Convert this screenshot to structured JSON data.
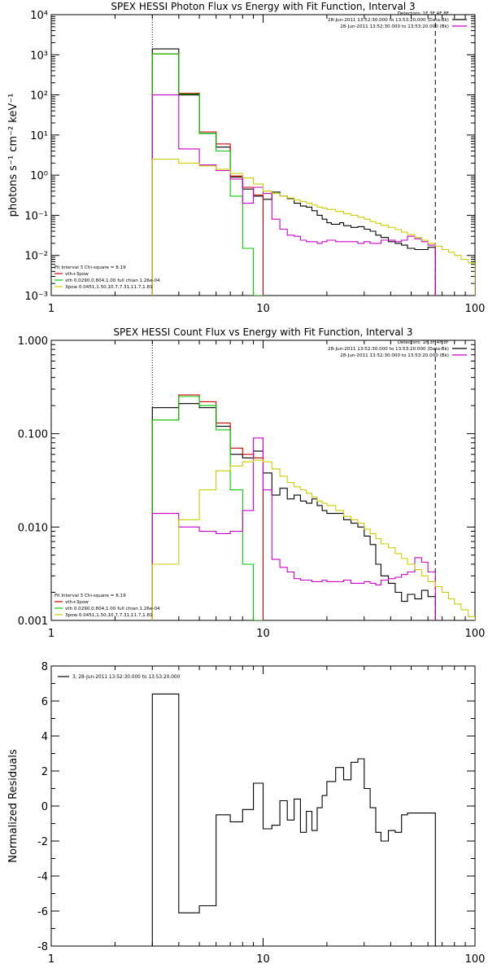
{
  "chart_data": [
    {
      "type": "line",
      "title": "SPEX HESSI Photon Flux vs Energy with Fit Function, Interval 3",
      "ylabel": "photons s⁻¹ cm⁻² keV⁻¹",
      "xlabel": "",
      "xscale": "log",
      "yscale": "log",
      "xlim": [
        1,
        100
      ],
      "ylim": [
        0.001,
        10000
      ],
      "x_ticks": [
        "1",
        "10",
        "100"
      ],
      "y_ticks": [
        "10⁻³",
        "10⁻²",
        "10⁻¹",
        "10⁰",
        "10¹",
        "10²",
        "10³",
        "10⁴"
      ],
      "legend_header": [
        "Detectors: 1F 3F 4F 8F",
        "28-Jun-2011 13:52:30.000 to 13:53:20.000 (Data-Bk)",
        "28-Jun-2011 13:52:30.000 to 13:53:20.000 (Bk)"
      ],
      "legend_header_colors": [
        "",
        "#000000",
        "#cc00cc"
      ],
      "fit_text": [
        "Fit Interval 3   Chi-square = 8.19",
        "vth+3pow",
        "vth 0.0290,0.804,1.00  full chian 1.26e-04",
        "3pow 0.0451,1.50,10.7,7.31,11.7,1.81"
      ],
      "fit_text_colors": [
        "#000000",
        "#cc0000",
        "#00cc00",
        "#cccc00"
      ],
      "vlines": [
        {
          "x": 3,
          "style": "dotted"
        },
        {
          "x": 65,
          "style": "dashed"
        }
      ],
      "series": [
        {
          "color": "#000000",
          "edges": [
            3,
            4,
            5,
            6,
            7,
            8,
            9,
            10,
            11,
            12,
            13,
            14,
            15,
            16,
            17,
            18,
            19,
            20,
            21,
            22,
            23,
            24,
            25,
            26,
            28,
            30,
            32,
            34,
            36,
            39,
            42,
            45,
            48,
            52,
            56,
            60,
            65
          ],
          "values": [
            1400,
            100,
            11,
            5,
            0.9,
            0.45,
            0.3,
            0.25,
            0.38,
            0.3,
            0.26,
            0.2,
            0.17,
            0.16,
            0.13,
            0.1,
            0.08,
            0.065,
            0.06,
            0.06,
            0.065,
            0.055,
            0.055,
            0.05,
            0.052,
            0.045,
            0.04,
            0.032,
            0.028,
            0.022,
            0.02,
            0.018,
            0.015,
            0.014,
            0.014,
            0.016
          ]
        },
        {
          "color": "#cc0000",
          "edges": [
            3,
            4,
            5,
            6,
            7,
            8,
            9,
            10
          ],
          "values": [
            1050,
            110,
            12,
            6,
            0.95,
            0.5,
            0.32
          ]
        },
        {
          "color": "#00cc00",
          "edges": [
            3,
            4,
            5,
            6,
            7,
            8,
            9,
            10
          ],
          "values": [
            1050,
            105,
            11,
            4,
            0.3,
            0.015,
            0.001
          ]
        },
        {
          "color": "#cc00cc",
          "edges": [
            3,
            4,
            5,
            6,
            7,
            8,
            9,
            10,
            11,
            12,
            13,
            14,
            15,
            16,
            17,
            18,
            19,
            20,
            22,
            24,
            26,
            28,
            30,
            32,
            34,
            36,
            39,
            42,
            45,
            48,
            52,
            56,
            60,
            65
          ],
          "values": [
            100,
            4.5,
            1.8,
            1.3,
            0.8,
            0.2,
            0.5,
            0.35,
            0.08,
            0.045,
            0.032,
            0.03,
            0.024,
            0.022,
            0.022,
            0.02,
            0.022,
            0.024,
            0.022,
            0.022,
            0.022,
            0.02,
            0.022,
            0.02,
            0.02,
            0.024,
            0.024,
            0.022,
            0.024,
            0.03,
            0.026,
            0.022,
            0.018
          ]
        },
        {
          "color": "#cccc00",
          "edges": [
            3,
            4,
            5,
            6,
            7,
            8,
            9,
            10,
            11,
            12,
            13,
            14,
            15,
            16,
            17,
            18,
            19,
            20,
            22,
            24,
            26,
            28,
            30,
            32,
            34,
            36,
            39,
            42,
            45,
            48,
            52,
            56,
            60,
            65,
            70,
            75,
            80,
            86,
            93,
            100
          ],
          "values": [
            2.5,
            2,
            1.7,
            1.4,
            1.1,
            0.85,
            0.6,
            0.4,
            0.35,
            0.3,
            0.27,
            0.24,
            0.22,
            0.2,
            0.18,
            0.16,
            0.15,
            0.14,
            0.125,
            0.11,
            0.1,
            0.09,
            0.08,
            0.07,
            0.063,
            0.056,
            0.05,
            0.044,
            0.038,
            0.033,
            0.028,
            0.024,
            0.02,
            0.017,
            0.014,
            0.012,
            0.01,
            0.008,
            0.0065
          ]
        }
      ]
    },
    {
      "type": "line",
      "title": "SPEX HESSI Count Flux vs Energy with Fit Function, Interval 3",
      "ylabel": "",
      "xlabel": "",
      "xscale": "log",
      "yscale": "log",
      "xlim": [
        1,
        100
      ],
      "ylim": [
        0.001,
        1.0
      ],
      "x_ticks": [
        "1",
        "10",
        "100"
      ],
      "y_ticks": [
        "0.001",
        "0.010",
        "0.100",
        "1.000"
      ],
      "legend_header": [
        "Detectors: 1F 3F 4F 8F",
        "28-Jun-2011 13:52:30.000 to 13:53:20.000 (Data-Bk)",
        "28-Jun-2011 13:52:30.000 to 13:53:20.000 (Bk)"
      ],
      "legend_header_colors": [
        "",
        "#000000",
        "#cc00cc"
      ],
      "fit_text": [
        "Fit Interval 3   Chi-square = 8.19",
        "vth+3pow",
        "vth 0.0290,0.804,1.00  full chian 1.26e-04",
        "3pow 0.0451,1.50,10.7,7.31,11.7,1.81"
      ],
      "fit_text_colors": [
        "#000000",
        "#cc0000",
        "#00cc00",
        "#cccc00"
      ],
      "vlines": [
        {
          "x": 3,
          "style": "dotted"
        },
        {
          "x": 65,
          "style": "dashed"
        }
      ],
      "series": [
        {
          "color": "#000000",
          "edges": [
            3,
            4,
            5,
            6,
            7,
            8,
            9,
            10,
            11,
            12,
            13,
            14,
            15,
            16,
            17,
            18,
            19,
            20,
            22,
            24,
            26,
            28,
            30,
            32,
            34,
            36,
            39,
            42,
            45,
            48,
            52,
            56,
            60,
            65
          ],
          "values": [
            0.19,
            0.21,
            0.19,
            0.12,
            0.06,
            0.055,
            0.065,
            0.038,
            0.022,
            0.026,
            0.02,
            0.022,
            0.019,
            0.018,
            0.02,
            0.017,
            0.015,
            0.014,
            0.014,
            0.012,
            0.011,
            0.01,
            0.008,
            0.0065,
            0.004,
            0.003,
            0.0025,
            0.002,
            0.0016,
            0.0019,
            0.0017,
            0.0021,
            0.0018
          ]
        },
        {
          "color": "#cc0000",
          "edges": [
            3,
            4,
            5,
            6,
            7,
            8,
            9,
            10
          ],
          "values": [
            0.14,
            0.26,
            0.22,
            0.13,
            0.07,
            0.06,
            0.055
          ]
        },
        {
          "color": "#00cc00",
          "edges": [
            3,
            4,
            5,
            6,
            7,
            8,
            9,
            10
          ],
          "values": [
            0.14,
            0.25,
            0.2,
            0.11,
            0.025,
            0.004,
            0.001
          ]
        },
        {
          "color": "#cc00cc",
          "edges": [
            3,
            4,
            5,
            6,
            7,
            8,
            9,
            10,
            11,
            12,
            13,
            14,
            15,
            16,
            17,
            18,
            19,
            20,
            22,
            24,
            26,
            28,
            30,
            32,
            34,
            36,
            39,
            42,
            45,
            48,
            52,
            56,
            60,
            65
          ],
          "values": [
            0.014,
            0.01,
            0.009,
            0.0085,
            0.009,
            0.015,
            0.09,
            0.025,
            0.0045,
            0.0037,
            0.0033,
            0.0028,
            0.0027,
            0.0027,
            0.0026,
            0.0026,
            0.0027,
            0.0026,
            0.0026,
            0.0027,
            0.0025,
            0.0025,
            0.0026,
            0.0025,
            0.0024,
            0.0027,
            0.0028,
            0.0029,
            0.0031,
            0.0033,
            0.0047,
            0.0042,
            0.0033
          ]
        },
        {
          "color": "#cccc00",
          "edges": [
            3,
            4,
            5,
            6,
            7,
            8,
            9,
            10,
            11,
            12,
            13,
            14,
            15,
            16,
            17,
            18,
            19,
            20,
            22,
            24,
            26,
            28,
            30,
            32,
            34,
            36,
            39,
            42,
            45,
            48,
            52,
            56,
            60,
            65,
            70,
            75,
            80,
            86,
            93,
            100
          ],
          "values": [
            0.004,
            0.012,
            0.025,
            0.04,
            0.045,
            0.05,
            0.052,
            0.05,
            0.042,
            0.035,
            0.03,
            0.027,
            0.025,
            0.023,
            0.021,
            0.019,
            0.018,
            0.017,
            0.015,
            0.013,
            0.012,
            0.011,
            0.0095,
            0.0085,
            0.0075,
            0.0066,
            0.006,
            0.0052,
            0.0046,
            0.004,
            0.0035,
            0.003,
            0.0026,
            0.0023,
            0.002,
            0.0017,
            0.0015,
            0.0013,
            0.0011
          ]
        }
      ]
    },
    {
      "type": "line",
      "title": "",
      "ylabel": "Normalized Residuals",
      "xlabel": "",
      "xscale": "log",
      "yscale": "linear",
      "xlim": [
        1,
        100
      ],
      "ylim": [
        -8,
        8
      ],
      "x_ticks": [
        "1",
        "10",
        "100"
      ],
      "y_ticks": [
        "-8",
        "-6",
        "-4",
        "-2",
        "0",
        "2",
        "4",
        "6",
        "8"
      ],
      "legend": [
        "3, 28-Jun-2011 13:52:30.000 to 13:53:20.000"
      ],
      "series": [
        {
          "color": "#000000",
          "edges": [
            3,
            4,
            5,
            6,
            7,
            8,
            9,
            10,
            11,
            12,
            13,
            14,
            15,
            16,
            17,
            18,
            19,
            20,
            22,
            24,
            26,
            28,
            30,
            32,
            34,
            36,
            39,
            42,
            45,
            48,
            52,
            56,
            60,
            65
          ],
          "values": [
            6.4,
            -6.1,
            -5.7,
            -0.5,
            -0.9,
            -0.2,
            1.3,
            -1.3,
            -1.1,
            0.3,
            -0.8,
            0.4,
            -1.5,
            -0.3,
            -1.4,
            -0.1,
            0.6,
            1.4,
            2.2,
            1.5,
            2.5,
            2.7,
            1.0,
            -0.1,
            -1.5,
            -2.0,
            -1.4,
            -1.5,
            -0.5,
            -0.4,
            -0.4,
            -0.4,
            -0.4
          ]
        }
      ]
    }
  ]
}
